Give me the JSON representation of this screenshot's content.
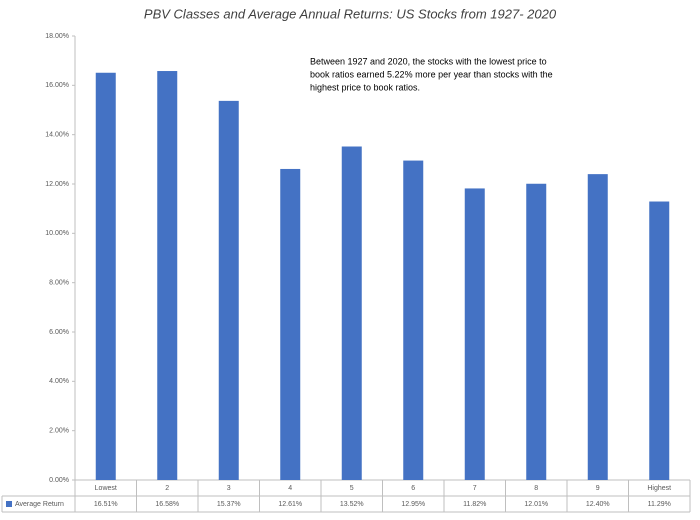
{
  "chart_data": {
    "type": "bar",
    "title": "PBV Classes and Average Annual Returns: US Stocks from 1927- 2020",
    "annotation": [
      "Between 1927 and 2020, the stocks with the lowest price to",
      "book ratios earned 5.22% more per year than stocks with the",
      "highest price to book ratios."
    ],
    "categories": [
      "Lowest",
      "2",
      "3",
      "4",
      "5",
      "6",
      "7",
      "8",
      "9",
      "Highest"
    ],
    "series": [
      {
        "name": "Average Return",
        "color": "#4472c4",
        "values": [
          16.51,
          16.58,
          15.37,
          12.61,
          13.52,
          12.95,
          11.82,
          12.01,
          12.4,
          11.29
        ],
        "value_labels": [
          "16.51%",
          "16.58%",
          "15.37%",
          "12.61%",
          "13.52%",
          "12.95%",
          "11.82%",
          "12.01%",
          "12.40%",
          "11.29%"
        ]
      }
    ],
    "ylim": [
      0,
      18
    ],
    "yticks": [
      {
        "value": 0,
        "label": "0.00%"
      },
      {
        "value": 2,
        "label": "2.00%"
      },
      {
        "value": 4,
        "label": "4.00%"
      },
      {
        "value": 6,
        "label": "6.00%"
      },
      {
        "value": 8,
        "label": "8.00%"
      },
      {
        "value": 10,
        "label": "10.00%"
      },
      {
        "value": 12,
        "label": "12.00%"
      },
      {
        "value": 14,
        "label": "14.00%"
      },
      {
        "value": 16,
        "label": "16.00%"
      },
      {
        "value": 18,
        "label": "18.00%"
      }
    ],
    "grid": false
  }
}
